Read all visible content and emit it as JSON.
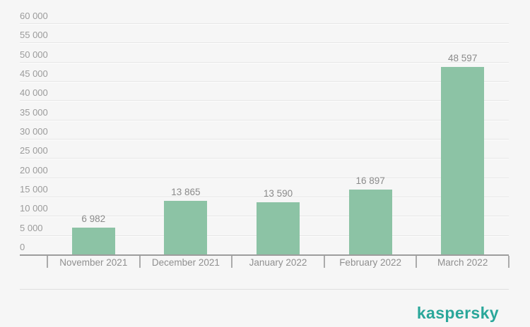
{
  "page": {
    "background": "#f6f6f6"
  },
  "chart_data": {
    "type": "bar",
    "categories": [
      "November 2021",
      "December 2021",
      "January 2022",
      "February 2022",
      "March 2022"
    ],
    "values": [
      6982,
      13865,
      13590,
      16897,
      48597
    ],
    "value_labels": [
      "6 982",
      "13 865",
      "13 590",
      "16 897",
      "48 597"
    ],
    "ylim": [
      0,
      60000
    ],
    "y_ticks": [
      0,
      5000,
      10000,
      15000,
      20000,
      25000,
      30000,
      35000,
      40000,
      45000,
      50000,
      55000,
      60000
    ],
    "y_tick_labels": [
      "0",
      "5 000",
      "10 000",
      "15 000",
      "20 000",
      "25 000",
      "30 000",
      "35 000",
      "40 000",
      "45 000",
      "50 000",
      "55 000",
      "60 000"
    ],
    "grid": true,
    "legend": false,
    "bar_color": "#8cc3a5",
    "value_label_color": "#8a8a8a",
    "y_label_color": "#9b9b9b",
    "category_label_color": "#8f8f8f",
    "axis_color": "#9d9d9d",
    "gridline_color": "#e6e6e6"
  },
  "branding": {
    "logo_text": "kaspersky",
    "logo_color": "#2aa79a"
  }
}
